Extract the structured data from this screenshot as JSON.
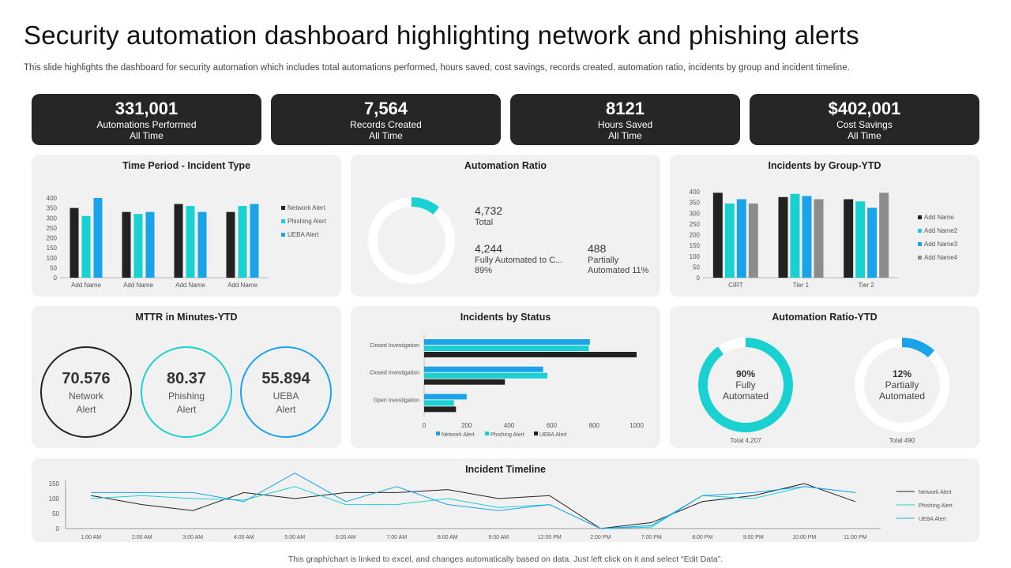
{
  "header": {
    "title": "Security automation dashboard highlighting network and phishing alerts",
    "subtitle": "This slide highlights the dashboard for security automation which includes total automations performed, hours saved, cost savings, records created, automation ratio, incidents by group and incident timeline."
  },
  "kpis": [
    {
      "value": "331,001",
      "label": "Automations Performed",
      "sub": "All Time"
    },
    {
      "value": "7,564",
      "label": "Records Created",
      "sub": "All Time"
    },
    {
      "value": "8121",
      "label": "Hours Saved",
      "sub": "All Time"
    },
    {
      "value": "$402,001",
      "label": "Cost Savings",
      "sub": "All Time"
    }
  ],
  "panels": {
    "time_period": "Time Period - Incident Type",
    "automation_ratio": "Automation Ratio",
    "incidents_group": "Incidents by Group-YTD",
    "mttr": "MTTR in Minutes-YTD",
    "incidents_status": "Incidents by Status",
    "automation_ratio_ytd": "Automation Ratio-YTD",
    "timeline": "Incident Timeline"
  },
  "automation_ratio": {
    "total_value": "4,732",
    "total_label": "Total",
    "full_value": "4,244",
    "full_label": "Fully Automated to C...",
    "full_pct": "89%",
    "partial_value": "488",
    "partial_label": "Partially",
    "partial_label2": "Automated 11%",
    "fraction": 0.11
  },
  "mttr": [
    {
      "value": "70.576",
      "line1": "Network",
      "line2": "Alert"
    },
    {
      "value": "80.37",
      "line1": "Phishing",
      "line2": "Alert"
    },
    {
      "value": "55.894",
      "line1": "UEBA",
      "line2": "Alert"
    }
  ],
  "ratio_ytd": [
    {
      "pct": "90%",
      "line1": "Fully",
      "line2": "Automated",
      "total": "Total 4,207",
      "fraction": 0.9
    },
    {
      "pct": "12%",
      "line1": "Partially",
      "line2": "Automated",
      "total": "Total 490",
      "fraction": 0.12
    }
  ],
  "colors": {
    "black": "#222222",
    "teal": "#1ad1d1",
    "blue": "#1aa3e8",
    "gray": "#8c8c8c",
    "ring": "#ffffff"
  },
  "footer": "This graph/chart is linked to excel, and changes automatically based on data. Just left click on it and select “Edit Data”.",
  "chart_data": [
    {
      "id": "time_period",
      "type": "bar",
      "title": "Time Period - Incident Type",
      "categories": [
        "Add Name",
        "Add Name",
        "Add Name",
        "Add Name"
      ],
      "series": [
        {
          "name": "Network Alert",
          "values": [
            350,
            330,
            370,
            330
          ]
        },
        {
          "name": "Phishing Alert",
          "values": [
            310,
            320,
            360,
            360
          ]
        },
        {
          "name": "UEBA Alert",
          "values": [
            400,
            330,
            330,
            370
          ]
        }
      ],
      "ylim": [
        0,
        400
      ],
      "yticks": [
        0,
        50,
        100,
        150,
        200,
        250,
        300,
        350,
        400
      ]
    },
    {
      "id": "incidents_group",
      "type": "bar",
      "title": "Incidents by Group-YTD",
      "categories": [
        "CIRT",
        "Tier 1",
        "Tier 2"
      ],
      "series": [
        {
          "name": "Add Name",
          "values": [
            395,
            375,
            365
          ]
        },
        {
          "name": "Add Name2",
          "values": [
            345,
            390,
            355
          ]
        },
        {
          "name": "Add Name3",
          "values": [
            365,
            380,
            325
          ]
        },
        {
          "name": "Add Name4",
          "values": [
            345,
            365,
            395
          ]
        }
      ],
      "ylim": [
        0,
        400
      ],
      "yticks": [
        0,
        50,
        100,
        150,
        200,
        250,
        300,
        350,
        400
      ]
    },
    {
      "id": "incidents_status",
      "type": "bar",
      "orientation": "horizontal",
      "title": "Incidents by Status",
      "categories": [
        "Closed Investigation",
        "Closed Investigation",
        "Open Investigation"
      ],
      "series": [
        {
          "name": "Network Alert",
          "values": [
            780,
            560,
            200
          ]
        },
        {
          "name": "Phishing Alert",
          "values": [
            775,
            580,
            140
          ]
        },
        {
          "name": "UEBA Alert",
          "values": [
            1000,
            380,
            150
          ]
        }
      ],
      "xlim": [
        0,
        1000
      ],
      "xticks": [
        0,
        200,
        400,
        600,
        800,
        1000
      ]
    },
    {
      "id": "timeline",
      "type": "line",
      "title": "Incident Timeline",
      "x": [
        "1:00 AM",
        "2:00 AM",
        "3:00 AM",
        "4:00 AM",
        "5:00 AM",
        "6:00 AM",
        "7:00 AM",
        "8:00 AM",
        "9:00 AM",
        "12:00 PM",
        "2:00 PM",
        "7:00 PM",
        "8:00 PM",
        "9:00 PM",
        "10:00 PM",
        "11:00 PM"
      ],
      "series": [
        {
          "name": "Network Alert",
          "values": [
            110,
            80,
            60,
            120,
            100,
            120,
            120,
            130,
            100,
            110,
            0,
            20,
            90,
            110,
            150,
            90
          ]
        },
        {
          "name": "Phishing Alert",
          "values": [
            100,
            110,
            100,
            95,
            140,
            80,
            80,
            100,
            70,
            80,
            0,
            5,
            110,
            100,
            140,
            120
          ]
        },
        {
          "name": "UEBA Alert",
          "values": [
            120,
            120,
            120,
            90,
            185,
            90,
            140,
            80,
            60,
            80,
            0,
            10,
            110,
            120,
            140,
            120
          ]
        }
      ],
      "ylim": [
        0,
        150
      ],
      "yticks": [
        0,
        50,
        100,
        150
      ]
    }
  ]
}
